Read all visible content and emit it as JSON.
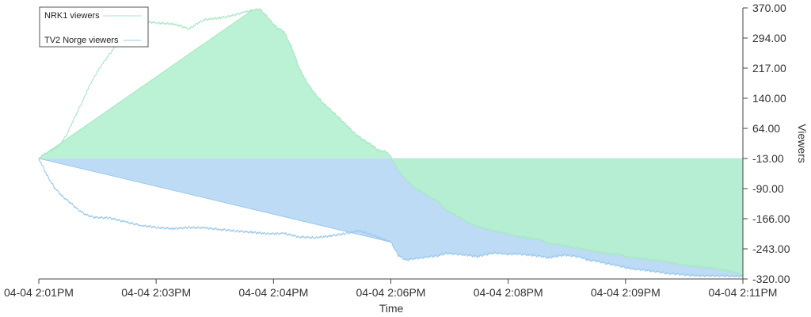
{
  "chart_data": {
    "type": "area",
    "xlabel": "Time",
    "ylabel": "Viewers",
    "x_ticks": [
      "04-04 2:01PM",
      "04-04 2:03PM",
      "04-04 2:04PM",
      "04-04 2:06PM",
      "04-04 2:08PM",
      "04-04 2:09PM",
      "04-04 2:11PM"
    ],
    "y_ticks": [
      "370.00",
      "294.00",
      "217.00",
      "140.00",
      "64.00",
      "-13.00",
      "-90.00",
      "-166.00",
      "-243.00",
      "-320.00"
    ],
    "ylim": [
      -320,
      370
    ],
    "baseline": -13,
    "y_axis_position": "right",
    "legend_position": "top-left",
    "grid": false,
    "series": [
      {
        "name": "NRK1 viewers",
        "line_color": "#a8e6c3",
        "fill_color": "#b4efcf",
        "fill_from_start_to_point": 22,
        "t": [
          0,
          0.0056,
          0.0168,
          0.028,
          0.0393,
          0.0505,
          0.0617,
          0.073,
          0.0842,
          0.0954,
          0.1066,
          0.1235,
          0.1459,
          0.1684,
          0.1908,
          0.2019,
          0.2132,
          0.2244,
          0.2356,
          0.2581,
          0.2693,
          0.2917,
          0.3029,
          0.3142,
          0.3254,
          0.3366,
          0.3479,
          0.3591,
          0.3703,
          0.3815,
          0.3928,
          0.404,
          0.4152,
          0.4264,
          0.4377,
          0.4489,
          0.4601,
          0.4714,
          0.4826,
          0.4938,
          0.5,
          0.5107,
          0.5219,
          0.5331,
          0.5443,
          0.5556,
          0.5668,
          0.578,
          0.5892,
          0.6005,
          0.6117,
          0.6229,
          0.6341,
          0.6454,
          0.6566,
          0.6678,
          0.6791,
          0.6903,
          0.7015,
          0.7127,
          0.724,
          0.7352,
          0.7464,
          0.7576,
          0.7689,
          0.7801,
          0.7913,
          0.8026,
          0.8138,
          0.825,
          0.8362,
          0.8475,
          0.8587,
          0.8699,
          0.8811,
          0.8924,
          0.9036,
          0.9148,
          0.9261,
          0.9373,
          0.9485,
          0.9597,
          0.971,
          0.9822,
          0.9934,
          1
        ],
        "values": [
          -13,
          -5,
          7,
          17,
          46,
          90,
          131,
          176,
          211,
          240,
          267,
          309,
          336,
          332,
          329,
          324,
          316,
          330,
          340,
          345,
          348,
          359,
          364,
          367,
          345,
          322,
          310,
          270,
          215,
          178,
          150,
          127,
          109,
          90,
          70,
          50,
          35,
          23,
          7,
          4,
          -10,
          -44,
          -68,
          -88,
          -98,
          -113,
          -122,
          -144,
          -155,
          -167,
          -178,
          -187,
          -192,
          -198,
          -201,
          -206,
          -212,
          -214,
          -218,
          -220,
          -230,
          -232,
          -235,
          -240,
          -243,
          -247,
          -251,
          -254,
          -256,
          -257,
          -265,
          -266,
          -268,
          -272,
          -273,
          -277,
          -281,
          -285,
          -287,
          -289,
          -291,
          -293,
          -297,
          -301,
          -305,
          -315
        ]
      },
      {
        "name": "TV2 Norge viewers",
        "line_color": "#9ac9ed",
        "fill_color": "#b3d5f3",
        "fill_from_start_to_point": 26,
        "t": [
          0,
          0.0112,
          0.0224,
          0.0337,
          0.0449,
          0.0561,
          0.0674,
          0.0786,
          0.1011,
          0.1235,
          0.1459,
          0.1684,
          0.1908,
          0.2133,
          0.2357,
          0.2581,
          0.2806,
          0.303,
          0.3254,
          0.3479,
          0.3703,
          0.3927,
          0.4152,
          0.4376,
          0.4545,
          0.4657,
          0.5,
          0.5106,
          0.5218,
          0.5331,
          0.5443,
          0.5555,
          0.5668,
          0.578,
          0.5892,
          0.6004,
          0.6117,
          0.6229,
          0.6341,
          0.6454,
          0.6566,
          0.6678,
          0.679,
          0.6903,
          0.7015,
          0.7127,
          0.7239,
          0.7352,
          0.7464,
          0.7576,
          0.7689,
          0.7801,
          0.7913,
          0.8025,
          0.8138,
          0.825,
          0.8362,
          0.8475,
          0.8587,
          0.8699,
          0.8811,
          0.8924,
          0.9036,
          0.9148,
          0.926,
          0.9373,
          0.9485,
          0.9597,
          0.9709,
          0.9822,
          0.9934,
          1
        ],
        "values": [
          -13,
          -55,
          -88,
          -110,
          -126,
          -144,
          -157,
          -163,
          -165,
          -175,
          -184,
          -189,
          -192,
          -189,
          -190,
          -194,
          -198,
          -201,
          -205,
          -204,
          -213,
          -215,
          -210,
          -204,
          -197,
          -203,
          -226,
          -260,
          -272,
          -268,
          -266,
          -263,
          -261,
          -255,
          -256,
          -258,
          -260,
          -263,
          -258,
          -254,
          -255,
          -257,
          -256,
          -258,
          -260,
          -262,
          -266,
          -262,
          -259,
          -261,
          -264,
          -272,
          -274,
          -279,
          -283,
          -287,
          -292,
          -295,
          -297,
          -300,
          -302,
          -306,
          -307,
          -309,
          -311,
          -312,
          -312,
          -312,
          -312,
          -313,
          -313,
          -313
        ]
      }
    ]
  }
}
